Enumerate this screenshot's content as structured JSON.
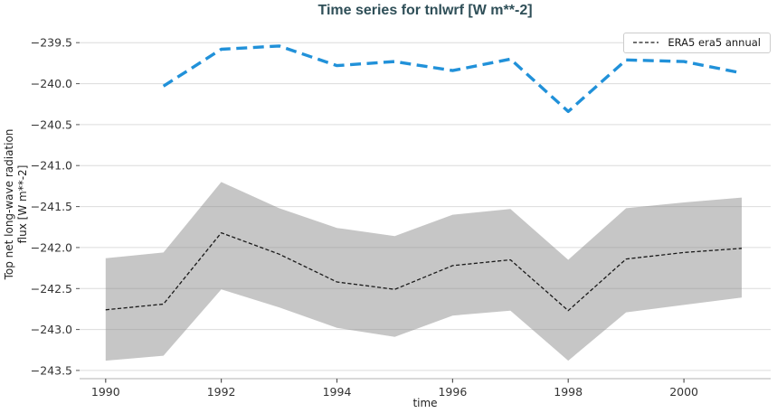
{
  "chart_data": {
    "type": "line",
    "title": "Time series for tnlwrf [W m**-2]",
    "xlabel": "time",
    "ylabel": "Top net long-wave radiation flux [W m**-2]",
    "ylabel_lines": [
      "Top net long-wave radiation",
      "flux [W m**-2]"
    ],
    "xlim": [
      1989.55,
      2001.5
    ],
    "ylim": [
      -243.6,
      -239.31
    ],
    "xticks": [
      1990,
      1992,
      1994,
      1996,
      1998,
      2000
    ],
    "yticks": [
      -239.5,
      -240.0,
      -240.5,
      -241.0,
      -241.5,
      -242.0,
      -242.5,
      -243.0,
      -243.5
    ],
    "grid": "horizontal-only",
    "legend_position": "upper-right",
    "legend_entries": [
      "ERA5 era5 annual"
    ],
    "series": [
      {
        "name": "tnlwrf blue dashed (no legend entry)",
        "color": "#2191d9",
        "line_style": "dashed",
        "line_width": 3.4,
        "dash": [
          12,
          6.5
        ],
        "x": [
          1991,
          1992,
          1993,
          1994,
          1995,
          1996,
          1997,
          1998,
          1999,
          2000,
          2001
        ],
        "y": [
          -240.03,
          -239.58,
          -239.54,
          -239.78,
          -239.73,
          -239.84,
          -239.7,
          -240.34,
          -239.71,
          -239.73,
          -239.87
        ]
      },
      {
        "name": "ERA5 era5 annual",
        "color": "#1a1a1a",
        "line_style": "dashed",
        "line_width": 1.3,
        "dash": [
          4.2,
          2.4
        ],
        "x": [
          1990,
          1991,
          1992,
          1993,
          1994,
          1995,
          1996,
          1997,
          1998,
          1999,
          2000,
          2001
        ],
        "y": [
          -242.76,
          -242.69,
          -241.82,
          -242.08,
          -242.42,
          -242.51,
          -242.22,
          -242.15,
          -242.77,
          -242.14,
          -242.06,
          -242.01
        ],
        "band": {
          "upper": [
            -242.13,
            -242.06,
            -241.2,
            -241.52,
            -241.76,
            -241.86,
            -241.6,
            -241.53,
            -242.15,
            -241.52,
            -241.45,
            -241.39
          ],
          "lower": [
            -243.38,
            -243.32,
            -242.51,
            -242.73,
            -242.98,
            -243.09,
            -242.83,
            -242.77,
            -243.38,
            -242.79,
            -242.7,
            -242.61
          ],
          "color": "rgba(128,128,128,0.45)"
        }
      }
    ]
  },
  "legend": {
    "label": "ERA5 era5 annual"
  },
  "colors": {
    "title": "#2f4f58",
    "grid": "#dcdcdc",
    "axis": "#cccccc",
    "tick": "#555555",
    "tick_label": "#333333",
    "blue_line": "#2191d9",
    "band_gray": "#c9c9c9"
  }
}
